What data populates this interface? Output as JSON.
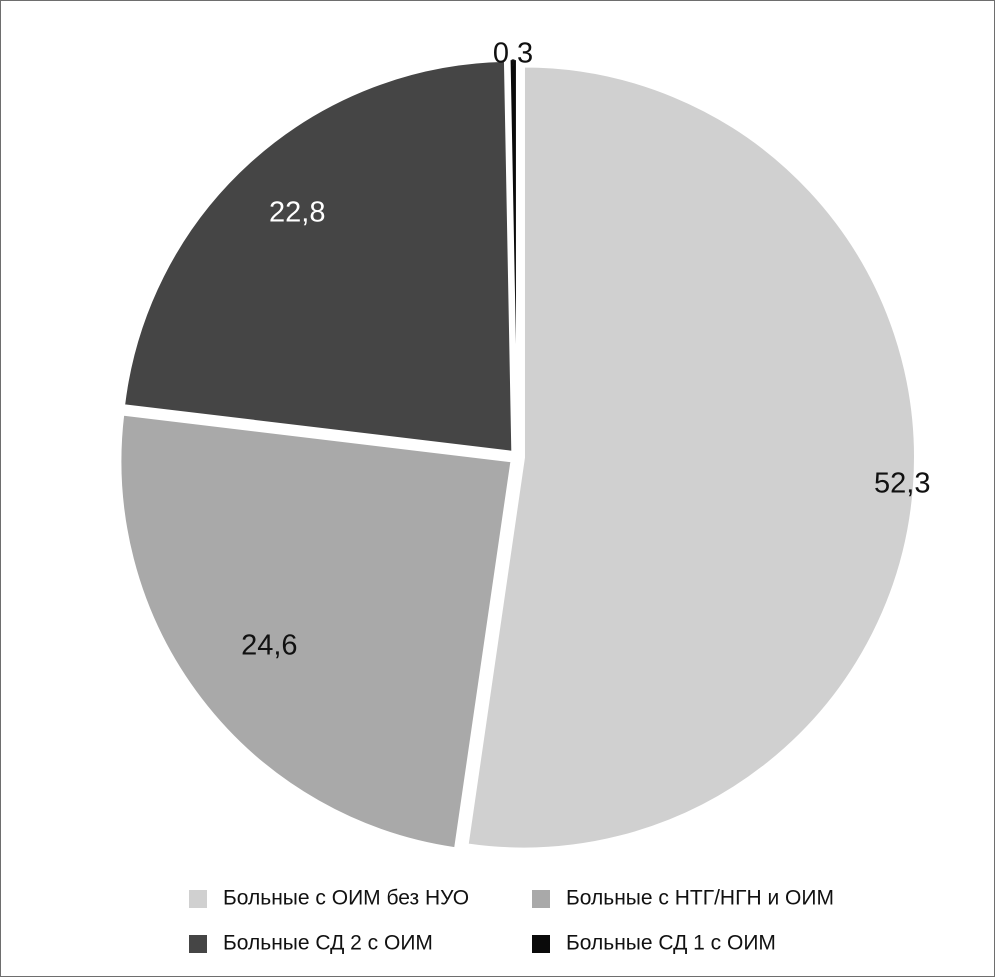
{
  "chart_data": {
    "type": "pie",
    "title": "",
    "slices": [
      {
        "label": "Больные с ОИМ без НУО",
        "value": 52.3,
        "display": "52,3",
        "color": "#d0d0d0",
        "label_color": "#111111"
      },
      {
        "label": "Больные с НТГ/НГН и ОИМ",
        "value": 24.6,
        "display": "24,6",
        "color": "#a9a9a9",
        "label_color": "#111111"
      },
      {
        "label": "Больные СД 2 с ОИМ",
        "value": 22.8,
        "display": "22,8",
        "color": "#454545",
        "label_color": "#ffffff"
      },
      {
        "label": "Больные СД 1 с ОИМ",
        "value": 0.3,
        "display": "0,3",
        "color": "#0a0a0a",
        "label_color": "#111111"
      }
    ],
    "start": "12 o'clock",
    "direction": "clockwise",
    "legend_position": "bottom",
    "legend": {
      "columns": 2,
      "order": [
        "Больные с ОИМ без НУО",
        "Больные с НТГ/НГН и ОИМ",
        "Больные СД 2 с ОИМ",
        "Больные СД 1 с ОИМ"
      ]
    }
  }
}
